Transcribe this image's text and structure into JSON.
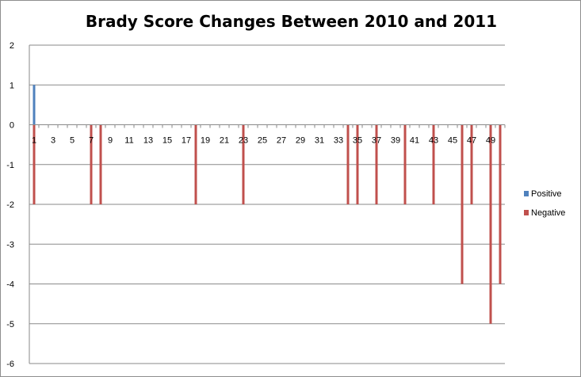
{
  "chart_data": {
    "type": "bar",
    "title": "Brady Score Changes Between 2010 and 2011",
    "xlabel": "",
    "ylabel": "",
    "ylim": [
      -6,
      2
    ],
    "yticks": [
      "2",
      "1",
      "0",
      "-1",
      "-2",
      "-3",
      "-4",
      "-5",
      "-6"
    ],
    "categories": [
      1,
      2,
      3,
      4,
      5,
      6,
      7,
      8,
      9,
      10,
      11,
      12,
      13,
      14,
      15,
      16,
      17,
      18,
      19,
      20,
      21,
      22,
      23,
      24,
      25,
      26,
      27,
      28,
      29,
      30,
      31,
      32,
      33,
      34,
      35,
      36,
      37,
      38,
      39,
      40,
      41,
      42,
      43,
      44,
      45,
      46,
      47,
      48,
      49,
      50
    ],
    "xtick_labels": [
      "1",
      "3",
      "5",
      "7",
      "9",
      "11",
      "13",
      "15",
      "17",
      "19",
      "21",
      "23",
      "25",
      "27",
      "29",
      "31",
      "33",
      "35",
      "37",
      "39",
      "41",
      "43",
      "45",
      "47",
      "49"
    ],
    "grid": true,
    "legend_position": "right",
    "series": [
      {
        "name": "Positive",
        "color": "#4F81BD",
        "values": [
          1,
          0,
          0,
          0,
          0,
          0,
          0,
          0,
          0,
          0,
          0,
          0,
          0,
          0,
          0,
          0,
          0,
          0,
          0,
          0,
          0,
          0,
          0,
          0,
          0,
          0,
          0,
          0,
          0,
          0,
          0,
          0,
          0,
          0,
          0,
          0,
          0,
          0,
          0,
          0,
          0,
          0,
          0,
          0,
          0,
          0,
          0,
          0,
          0,
          0
        ]
      },
      {
        "name": "Negative",
        "color": "#C0504D",
        "values": [
          -2,
          0,
          0,
          0,
          0,
          0,
          -2,
          -2,
          0,
          0,
          0,
          0,
          0,
          0,
          0,
          0,
          0,
          -2,
          0,
          0,
          0,
          0,
          -2,
          0,
          0,
          0,
          0,
          0,
          0,
          0,
          0,
          0,
          0,
          -2,
          -2,
          0,
          -2,
          0,
          0,
          -2,
          0,
          0,
          -2,
          0,
          0,
          -4,
          -2,
          0,
          -5,
          -4
        ]
      }
    ]
  }
}
